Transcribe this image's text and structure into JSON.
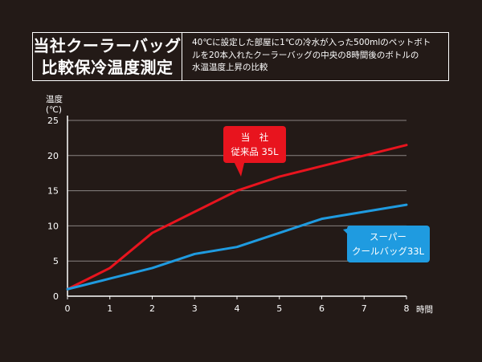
{
  "header": {
    "title_line1": "当社クーラーバッグ",
    "title_line2": "比較保冷温度測定",
    "desc_line1": "40℃に設定した部屋に1℃の冷水が入った500mlのペットボト",
    "desc_line2": "ルを20本入れたクーラーバッグの中央の8時間後のボトルの",
    "desc_line3": "水温温度上昇の比較"
  },
  "chart_data": {
    "type": "line",
    "x": [
      0,
      1,
      2,
      3,
      4,
      5,
      6,
      7,
      8
    ],
    "xlabel": "時間",
    "ylabel_line1": "温度",
    "ylabel_line2": "(℃)",
    "xlim": [
      0,
      8
    ],
    "ylim": [
      0,
      25
    ],
    "x_ticks": [
      0,
      1,
      2,
      3,
      4,
      5,
      6,
      7,
      8
    ],
    "y_ticks": [
      0,
      5,
      10,
      15,
      20,
      25
    ],
    "grid": "horizontal",
    "series": [
      {
        "name_line1": "当　社",
        "name_line2": "従来品 35L",
        "color": "#e8141e",
        "values": [
          1,
          4,
          9,
          12,
          15,
          17,
          18.5,
          20,
          21.5
        ]
      },
      {
        "name_line1": "スーパー",
        "name_line2": "クールバッグ33L",
        "color": "#1f9be0",
        "values": [
          1,
          2.5,
          4,
          6,
          7,
          9,
          11,
          12,
          13
        ]
      }
    ]
  }
}
